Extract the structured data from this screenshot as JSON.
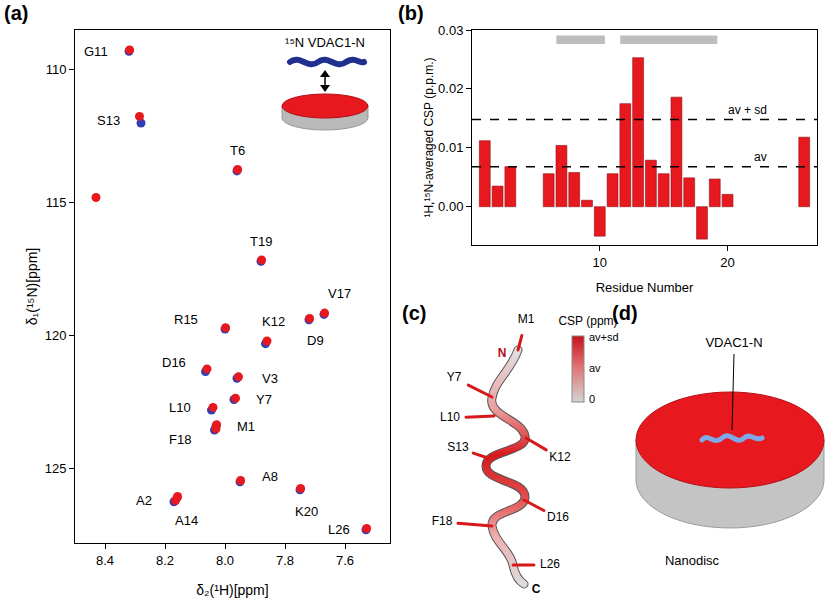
{
  "chart_data": [
    {
      "label": "(a)",
      "type": "scatter",
      "x_label": "δ₂(¹H)[ppm]",
      "y_label": "δ₁(¹⁵N)[ppm]",
      "xlim": [
        8.5,
        7.45
      ],
      "ylim": [
        127.8,
        108.5
      ],
      "xticks": [
        8.4,
        8.2,
        {
          "value": 8,
          "label": "8.0"
        },
        7.8,
        7.6
      ],
      "yticks": [
        110,
        115,
        120,
        125
      ],
      "grid": false,
      "inset": "¹⁵N VDAC1-N",
      "series": [
        {
          "color": "#2c3fb5",
          "x": [
            8.03,
            8.16,
            7.96,
            7.96,
            7.97,
            7.95,
            7.72,
            8.045,
            8.32,
            7.865,
            8.28,
            8.17,
            8.0,
            8.065,
            7.67,
            8.035,
            7.88,
            7.75,
            7.53
          ],
          "values": [
            123.4,
            126.1,
            121.6,
            113.8,
            122.4,
            125.5,
            119.4,
            122.8,
            109.3,
            120.3,
            112.0,
            126.25,
            119.75,
            121.35,
            119.2,
            123.55,
            117.2,
            125.8,
            127.3
          ]
        },
        {
          "color": "#e8191e",
          "x": [
            8.028,
            8.158,
            7.955,
            7.958,
            7.965,
            7.948,
            7.718,
            8.04,
            8.318,
            7.86,
            8.285,
            8.165,
            7.998,
            8.06,
            7.668,
            8.03,
            7.878,
            7.748,
            7.528,
            8.43
          ],
          "values": [
            123.35,
            126.05,
            121.55,
            113.75,
            122.35,
            125.45,
            119.35,
            122.7,
            109.25,
            120.2,
            111.75,
            126.2,
            119.7,
            121.25,
            119.15,
            123.5,
            117.15,
            125.75,
            127.25,
            114.8
          ]
        }
      ],
      "annotations": [
        {
          "text": "G11",
          "x": 8.43,
          "y": 109.3
        },
        {
          "text": "S13",
          "x": 8.39,
          "y": 111.9
        },
        {
          "text": "T6",
          "x": 7.96,
          "y": 113.05
        },
        {
          "text": "T19",
          "x": 7.88,
          "y": 116.45
        },
        {
          "text": "V17",
          "x": 7.62,
          "y": 118.4
        },
        {
          "text": "K12",
          "x": 7.84,
          "y": 119.45
        },
        {
          "text": "D9",
          "x": 7.7,
          "y": 120.2
        },
        {
          "text": "R15",
          "x": 8.13,
          "y": 119.4
        },
        {
          "text": "D16",
          "x": 8.17,
          "y": 121.0
        },
        {
          "text": "V3",
          "x": 7.85,
          "y": 121.6
        },
        {
          "text": "L10",
          "x": 8.15,
          "y": 122.7
        },
        {
          "text": "Y7",
          "x": 7.87,
          "y": 122.4
        },
        {
          "text": "M1",
          "x": 7.93,
          "y": 123.4
        },
        {
          "text": "F18",
          "x": 8.15,
          "y": 123.9
        },
        {
          "text": "A8",
          "x": 7.85,
          "y": 125.3
        },
        {
          "text": "K20",
          "x": 7.73,
          "y": 126.6
        },
        {
          "text": "A2",
          "x": 8.27,
          "y": 126.2
        },
        {
          "text": "A14",
          "x": 8.13,
          "y": 126.95
        },
        {
          "text": "L26",
          "x": 7.62,
          "y": 127.3
        }
      ]
    },
    {
      "label": "(b)",
      "type": "bar",
      "x_label": "Residue Number",
      "y_label": "¹H,¹⁵N-averaged CSP (p.p.m.)",
      "x": [
        1,
        2,
        3,
        6,
        7,
        8,
        9,
        10,
        11,
        12,
        13,
        14,
        15,
        16,
        17,
        18,
        19,
        20,
        26
      ],
      "values": [
        0.0112,
        0.0035,
        0.0068,
        0.0056,
        0.0104,
        0.0058,
        0.0011,
        -0.005,
        0.0056,
        0.0175,
        0.0253,
        0.0079,
        0.0056,
        0.0186,
        0.0049,
        -0.0055,
        0.0047,
        0.0021,
        0.0118
      ],
      "color": "#e8191e",
      "xlim": [
        0,
        27
      ],
      "xticks": [
        10,
        20
      ],
      "ylim": [
        -0.0065,
        0.03
      ],
      "yticks": [
        {
          "value": 0,
          "label": "0.00"
        },
        0.01,
        0.02,
        0.03
      ],
      "grid": false,
      "reference_lines": [
        {
          "value": 0.0148,
          "label": "av + sd",
          "line_style": "dashed"
        },
        {
          "value": 0.0068,
          "label": "av",
          "line_style": "dashed"
        }
      ],
      "highlight_ranges": [
        [
          6.6,
          10.4
        ],
        [
          11.6,
          19.2
        ]
      ]
    }
  ],
  "diagrams": {
    "c": {
      "label": "(c)",
      "residue_labels": [
        "M1",
        "Y7",
        "L10",
        "S13",
        "K12",
        "F18",
        "D16",
        "L26"
      ],
      "termini": [
        "N",
        "C"
      ],
      "colorbar": {
        "title": "CSP (ppm)",
        "labels": [
          "av+sd",
          "av",
          "0"
        ]
      }
    },
    "d": {
      "label": "(d)",
      "peptide": "VDAC1-N",
      "caption": "Nanodisc"
    }
  }
}
